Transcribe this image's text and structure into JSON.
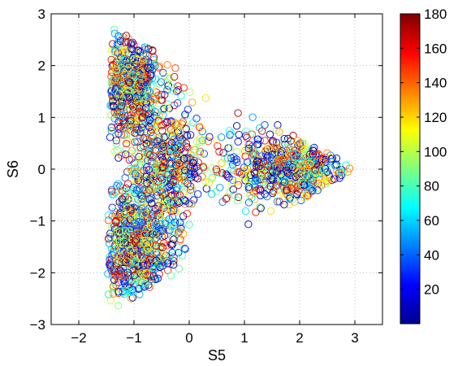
{
  "chart_data": {
    "type": "scatter",
    "marker": "open-circle",
    "xlabel": "S5",
    "ylabel": "S6",
    "xlim": [
      -2.5,
      3.5
    ],
    "ylim": [
      -3,
      3
    ],
    "xticks": [
      -2,
      -1,
      0,
      1,
      2,
      3
    ],
    "yticks": [
      -3,
      -2,
      -1,
      0,
      1,
      2,
      3
    ],
    "xtick_labels": [
      "−2",
      "−1",
      "0",
      "1",
      "2",
      "3"
    ],
    "ytick_labels": [
      "−3",
      "−2",
      "−1",
      "0",
      "1",
      "2",
      "3"
    ],
    "grid": true,
    "colorbar": {
      "colormap": "jet",
      "range": [
        0,
        180
      ],
      "ticks": [
        20,
        40,
        60,
        80,
        100,
        120,
        140,
        160,
        180
      ],
      "tick_labels": [
        "20",
        "40",
        "60",
        "80",
        "100",
        "120",
        "140",
        "160",
        "180"
      ],
      "position": "right"
    },
    "clusters": [
      {
        "arm": "upper-left",
        "center": [
          -1.1,
          1.6
        ],
        "spread": [
          0.3,
          0.5
        ],
        "color_value_mean": 60
      },
      {
        "arm": "lower-left",
        "center": [
          -1.0,
          -1.5
        ],
        "spread": [
          0.35,
          0.55
        ],
        "color_value_mean": 60
      },
      {
        "arm": "right",
        "center": [
          1.8,
          0.0
        ],
        "spread": [
          0.6,
          0.35
        ],
        "color_value_mean": 60
      },
      {
        "arm": "center",
        "center": [
          -0.4,
          0.0
        ],
        "spread": [
          0.35,
          0.6
        ],
        "color_value_mean": 70
      }
    ]
  }
}
